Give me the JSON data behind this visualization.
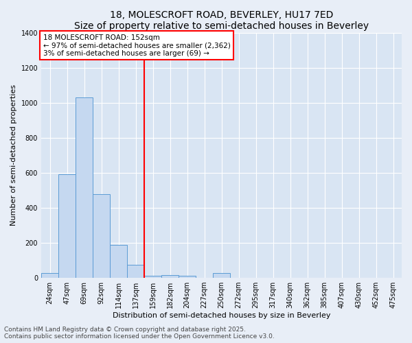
{
  "title1": "18, MOLESCROFT ROAD, BEVERLEY, HU17 7ED",
  "title2": "Size of property relative to semi-detached houses in Beverley",
  "xlabel": "Distribution of semi-detached houses by size in Beverley",
  "ylabel": "Number of semi-detached properties",
  "categories": [
    "24sqm",
    "47sqm",
    "69sqm",
    "92sqm",
    "114sqm",
    "137sqm",
    "159sqm",
    "182sqm",
    "204sqm",
    "227sqm",
    "250sqm",
    "272sqm",
    "295sqm",
    "317sqm",
    "340sqm",
    "362sqm",
    "385sqm",
    "407sqm",
    "430sqm",
    "452sqm",
    "475sqm"
  ],
  "values": [
    28,
    590,
    1030,
    480,
    190,
    75,
    13,
    15,
    13,
    0,
    26,
    0,
    0,
    0,
    0,
    0,
    0,
    0,
    0,
    0,
    0
  ],
  "bar_color": "#c5d8f0",
  "bar_edge_color": "#5b9bd5",
  "vline_color": "#ff0000",
  "annotation_text": "18 MOLESCROFT ROAD: 152sqm\n← 97% of semi-detached houses are smaller (2,362)\n3% of semi-detached houses are larger (69) →",
  "annotation_box_color": "#ffffff",
  "annotation_box_edge": "#ff0000",
  "ylim": [
    0,
    1400
  ],
  "yticks": [
    0,
    200,
    400,
    600,
    800,
    1000,
    1200,
    1400
  ],
  "background_color": "#e8eef7",
  "plot_background": "#d9e5f3",
  "footer": "Contains HM Land Registry data © Crown copyright and database right 2025.\nContains public sector information licensed under the Open Government Licence v3.0.",
  "title1_fontsize": 10,
  "title2_fontsize": 9,
  "annot_fontsize": 7.5,
  "footer_fontsize": 6.5,
  "xlabel_fontsize": 8,
  "ylabel_fontsize": 8,
  "tick_fontsize": 7
}
